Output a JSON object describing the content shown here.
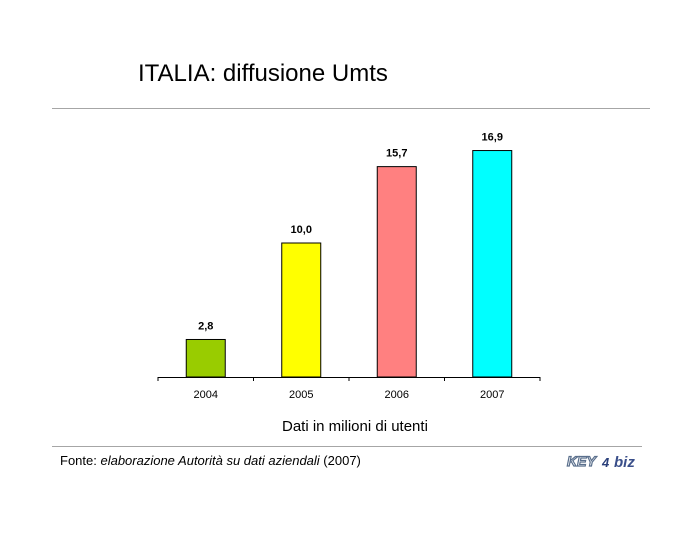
{
  "title": "ITALIA: diffusione Umts",
  "subtitle": "Dati in milioni di utenti",
  "source": {
    "prefix": "Fonte: ",
    "italic": "elaborazione Autorità su dati aziendali",
    "suffix": " (2007)"
  },
  "logo": {
    "text_key": "KEY",
    "text_4": "4",
    "text_biz": "biz"
  },
  "chart_data": {
    "type": "bar",
    "categories": [
      "2004",
      "2005",
      "2006",
      "2007"
    ],
    "values": [
      2.8,
      10.0,
      15.7,
      16.9
    ],
    "value_labels": [
      "2,8",
      "10,0",
      "15,7",
      "16,9"
    ],
    "colors": [
      "#99cc00",
      "#ffff00",
      "#ff8080",
      "#00ffff"
    ],
    "title": "",
    "xlabel": "",
    "ylabel": "",
    "ylim": [
      0,
      20
    ],
    "grid": false,
    "legend": "none"
  }
}
